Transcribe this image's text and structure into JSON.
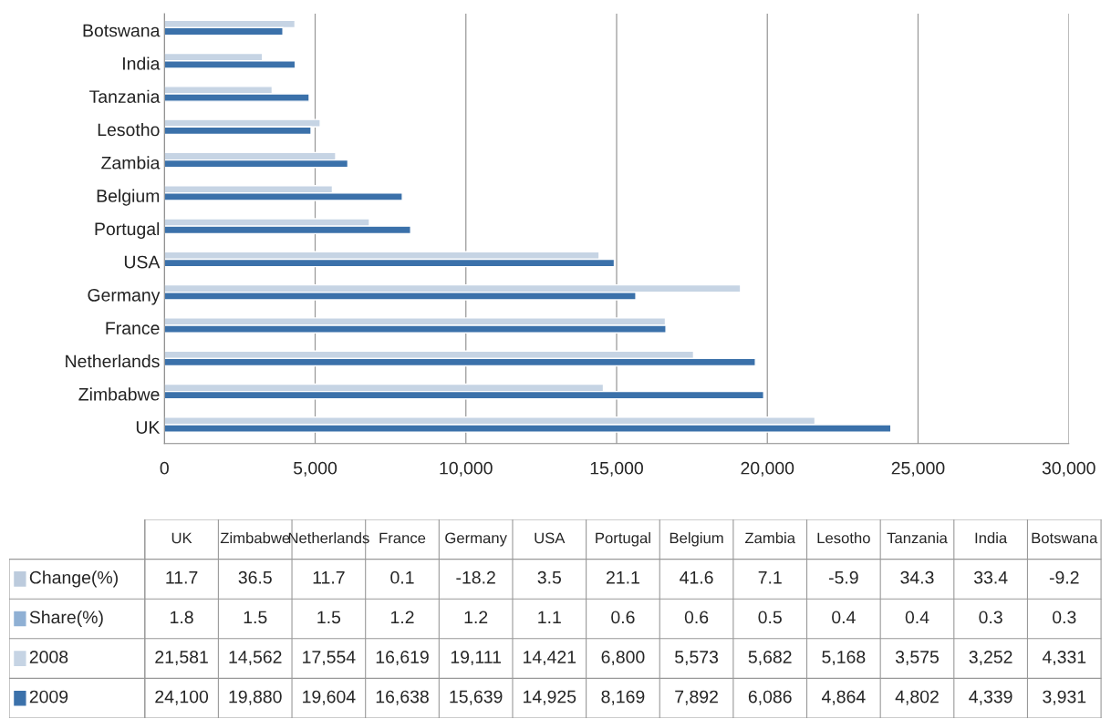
{
  "chart_data": [
    {
      "type": "bar",
      "orientation": "horizontal",
      "categories": [
        "Botswana",
        "India",
        "Tanzania",
        "Lesotho",
        "Zambia",
        "Belgium",
        "Portugal",
        "USA",
        "Germany",
        "France",
        "Netherlands",
        "Zimbabwe",
        "UK"
      ],
      "series": [
        {
          "color": "#c6d4e4",
          "values": [
            4331,
            3252,
            3575,
            5168,
            5682,
            5573,
            6800,
            14421,
            19111,
            16619,
            17554,
            14562,
            21581
          ]
        },
        {
          "color": "#3b71aa",
          "values": [
            3931,
            4339,
            4802,
            4864,
            6086,
            7892,
            8169,
            14925,
            15639,
            16638,
            19604,
            19880,
            24100
          ]
        }
      ],
      "xlim": [
        0,
        30000
      ],
      "xticks": [
        {
          "value": 0,
          "label": "0"
        },
        {
          "value": 5000,
          "label": "5,000"
        },
        {
          "value": 10000,
          "label": "10,000"
        },
        {
          "value": 15000,
          "label": "15,000"
        },
        {
          "value": 20000,
          "label": "20,000"
        },
        {
          "value": 25000,
          "label": "25,000"
        },
        {
          "value": 30000,
          "label": "30,000"
        }
      ],
      "grid": "x"
    },
    {
      "type": "other",
      "categories": [
        "UK",
        "Zimbabwe",
        "Netherlands",
        "France",
        "Germany",
        "USA",
        "Portugal",
        "Belgium",
        "Zambia",
        "Lesotho",
        "Tanzania",
        "India",
        "Botswana"
      ],
      "series": [
        {
          "name": "Change(%)",
          "color": "#bccbdd",
          "values": [
            11.7,
            36.5,
            11.7,
            0.1,
            -18.2,
            3.5,
            21.1,
            41.6,
            7.1,
            -5.9,
            34.3,
            33.4,
            -9.2
          ]
        },
        {
          "name": "Share(%)",
          "color": "#8fb0d4",
          "values": [
            1.8,
            1.5,
            1.5,
            1.2,
            1.2,
            1.1,
            0.6,
            0.6,
            0.5,
            0.4,
            0.4,
            0.3,
            0.3
          ]
        },
        {
          "name": "2008",
          "color": "#c6d4e4",
          "values": [
            21581,
            14562,
            17554,
            16619,
            19111,
            14421,
            6800,
            5573,
            5682,
            5168,
            3575,
            3252,
            4331
          ],
          "value_labels": [
            "21,581",
            "14,562",
            "17,554",
            "16,619",
            "19,111",
            "14,421",
            "6,800",
            "5,573",
            "5,682",
            "5,168",
            "3,575",
            "3,252",
            "4,331"
          ]
        },
        {
          "name": "2009",
          "color": "#3b71aa",
          "values": [
            24100,
            19880,
            19604,
            16638,
            15639,
            14925,
            8169,
            7892,
            6086,
            4864,
            4802,
            4339,
            3931
          ],
          "value_labels": [
            "24,100",
            "19,880",
            "19,604",
            "16,638",
            "15,639",
            "14,925",
            "8,169",
            "7,892",
            "6,086",
            "4,864",
            "4,802",
            "4,339",
            "3,931"
          ]
        }
      ],
      "data_labels": true,
      "legend": "left"
    }
  ]
}
